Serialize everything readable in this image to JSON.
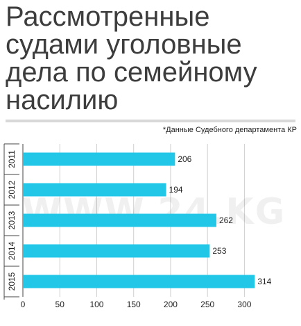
{
  "title_lines": [
    "Рассмотренные",
    "судами уголовные",
    "дела по семейному",
    "насилию"
  ],
  "source_note": "*Данные Судебного департамента КР",
  "watermark": "WWW.24.KG",
  "colors": {
    "bar": "#22c7e8",
    "grid": "#cfcfcf",
    "axis": "#444444",
    "divider": "#d8d8d8"
  },
  "chart_data": {
    "type": "bar",
    "orientation": "horizontal",
    "categories": [
      "2011",
      "2012",
      "2013",
      "2014",
      "2015"
    ],
    "values": [
      206,
      194,
      262,
      253,
      314
    ],
    "data_labels": [
      "206",
      "194",
      "262",
      "253",
      "314"
    ],
    "xlim": [
      0,
      340
    ],
    "xticks": [
      0,
      50,
      100,
      150,
      200,
      250,
      300
    ],
    "title": "",
    "xlabel": "",
    "ylabel": "",
    "grid": true,
    "legend": "none"
  }
}
